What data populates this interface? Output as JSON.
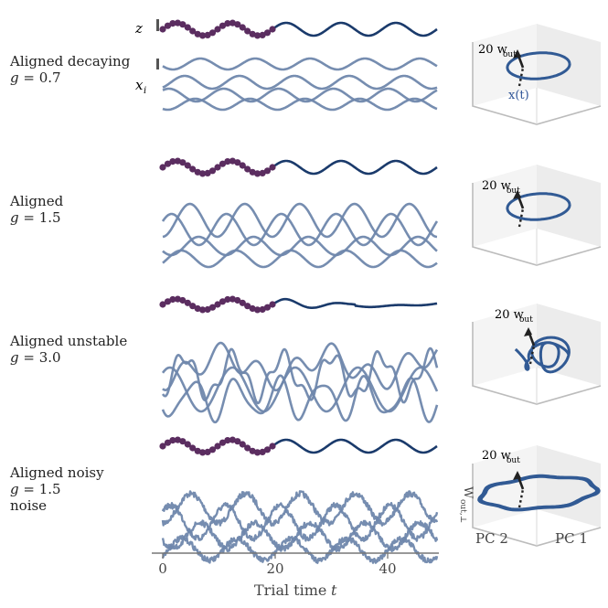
{
  "rows": [
    {
      "lines": [
        "Aligned decaying",
        "= 0.7"
      ],
      "g_symbol": "g"
    },
    {
      "lines": [
        "Aligned",
        "= 1.5"
      ],
      "g_symbol": "g"
    },
    {
      "lines": [
        "Aligned unstable",
        "= 3.0"
      ],
      "g_symbol": "g"
    },
    {
      "lines": [
        "Aligned noisy",
        "= 1.5",
        "noise"
      ],
      "g_symbol": "g"
    }
  ],
  "trace_labels": {
    "output": "z",
    "neurons": "x",
    "neurons_sub": "i"
  },
  "x_axis": {
    "label": "Trial time",
    "var": "t",
    "ticks": [
      "0",
      "20",
      "40"
    ]
  },
  "inset": {
    "w_label": "20 w",
    "w_sub": "out",
    "x_label": "x(t)",
    "perp_label": "W",
    "perp_sub": "out,⊥",
    "pc1": "PC 1",
    "pc2": "PC 2"
  },
  "colors": {
    "output": "#1a3a6b",
    "target": "#5b2d60",
    "neuron": "#6f87ac",
    "arrow": "#222222",
    "box": "#bcbcbc"
  },
  "chart_data": {
    "type": "line",
    "x_range": [
      0,
      50
    ],
    "target_dots_x_range": [
      0,
      20
    ],
    "panels": [
      {
        "name": "Aligned decaying",
        "g": 0.7
      },
      {
        "name": "Aligned",
        "g": 1.5
      },
      {
        "name": "Aligned unstable",
        "g": 3.0
      },
      {
        "name": "Aligned noisy",
        "g": 1.5
      }
    ]
  }
}
